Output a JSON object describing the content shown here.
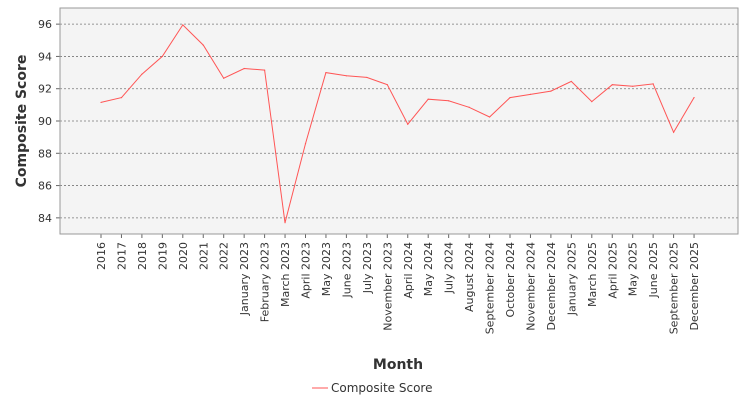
{
  "chart_data": {
    "type": "line",
    "title": "",
    "xlabel": "Month",
    "ylabel": "Composite Score",
    "ylim": [
      83,
      97
    ],
    "yticks": [
      84,
      86,
      88,
      90,
      92,
      94,
      96
    ],
    "grid": true,
    "legend_position": "bottom-center",
    "categories": [
      "2016",
      "2017",
      "2018",
      "2019",
      "2020",
      "2021",
      "2022",
      "January 2023",
      "February 2023",
      "March 2023",
      "April 2023",
      "May 2023",
      "June 2023",
      "July 2023",
      "November 2023",
      "April 2024",
      "May 2024",
      "July 2024",
      "August 2024",
      "September 2024",
      "October 2024",
      "November 2024",
      "December 2024",
      "January 2025",
      "March 2025",
      "April 2025",
      "May 2025",
      "June 2025",
      "September 2025",
      "December 2025"
    ],
    "series": [
      {
        "name": "Composite Score",
        "color": "#ff5555",
        "values": [
          91.15,
          91.45,
          92.9,
          94.0,
          95.95,
          94.7,
          92.65,
          93.25,
          93.15,
          83.7,
          88.6,
          93.0,
          92.8,
          92.7,
          92.25,
          89.8,
          91.35,
          91.25,
          90.85,
          90.25,
          91.45,
          91.65,
          91.85,
          92.45,
          91.2,
          92.25,
          92.15,
          92.3,
          89.3,
          91.45
        ]
      }
    ]
  }
}
